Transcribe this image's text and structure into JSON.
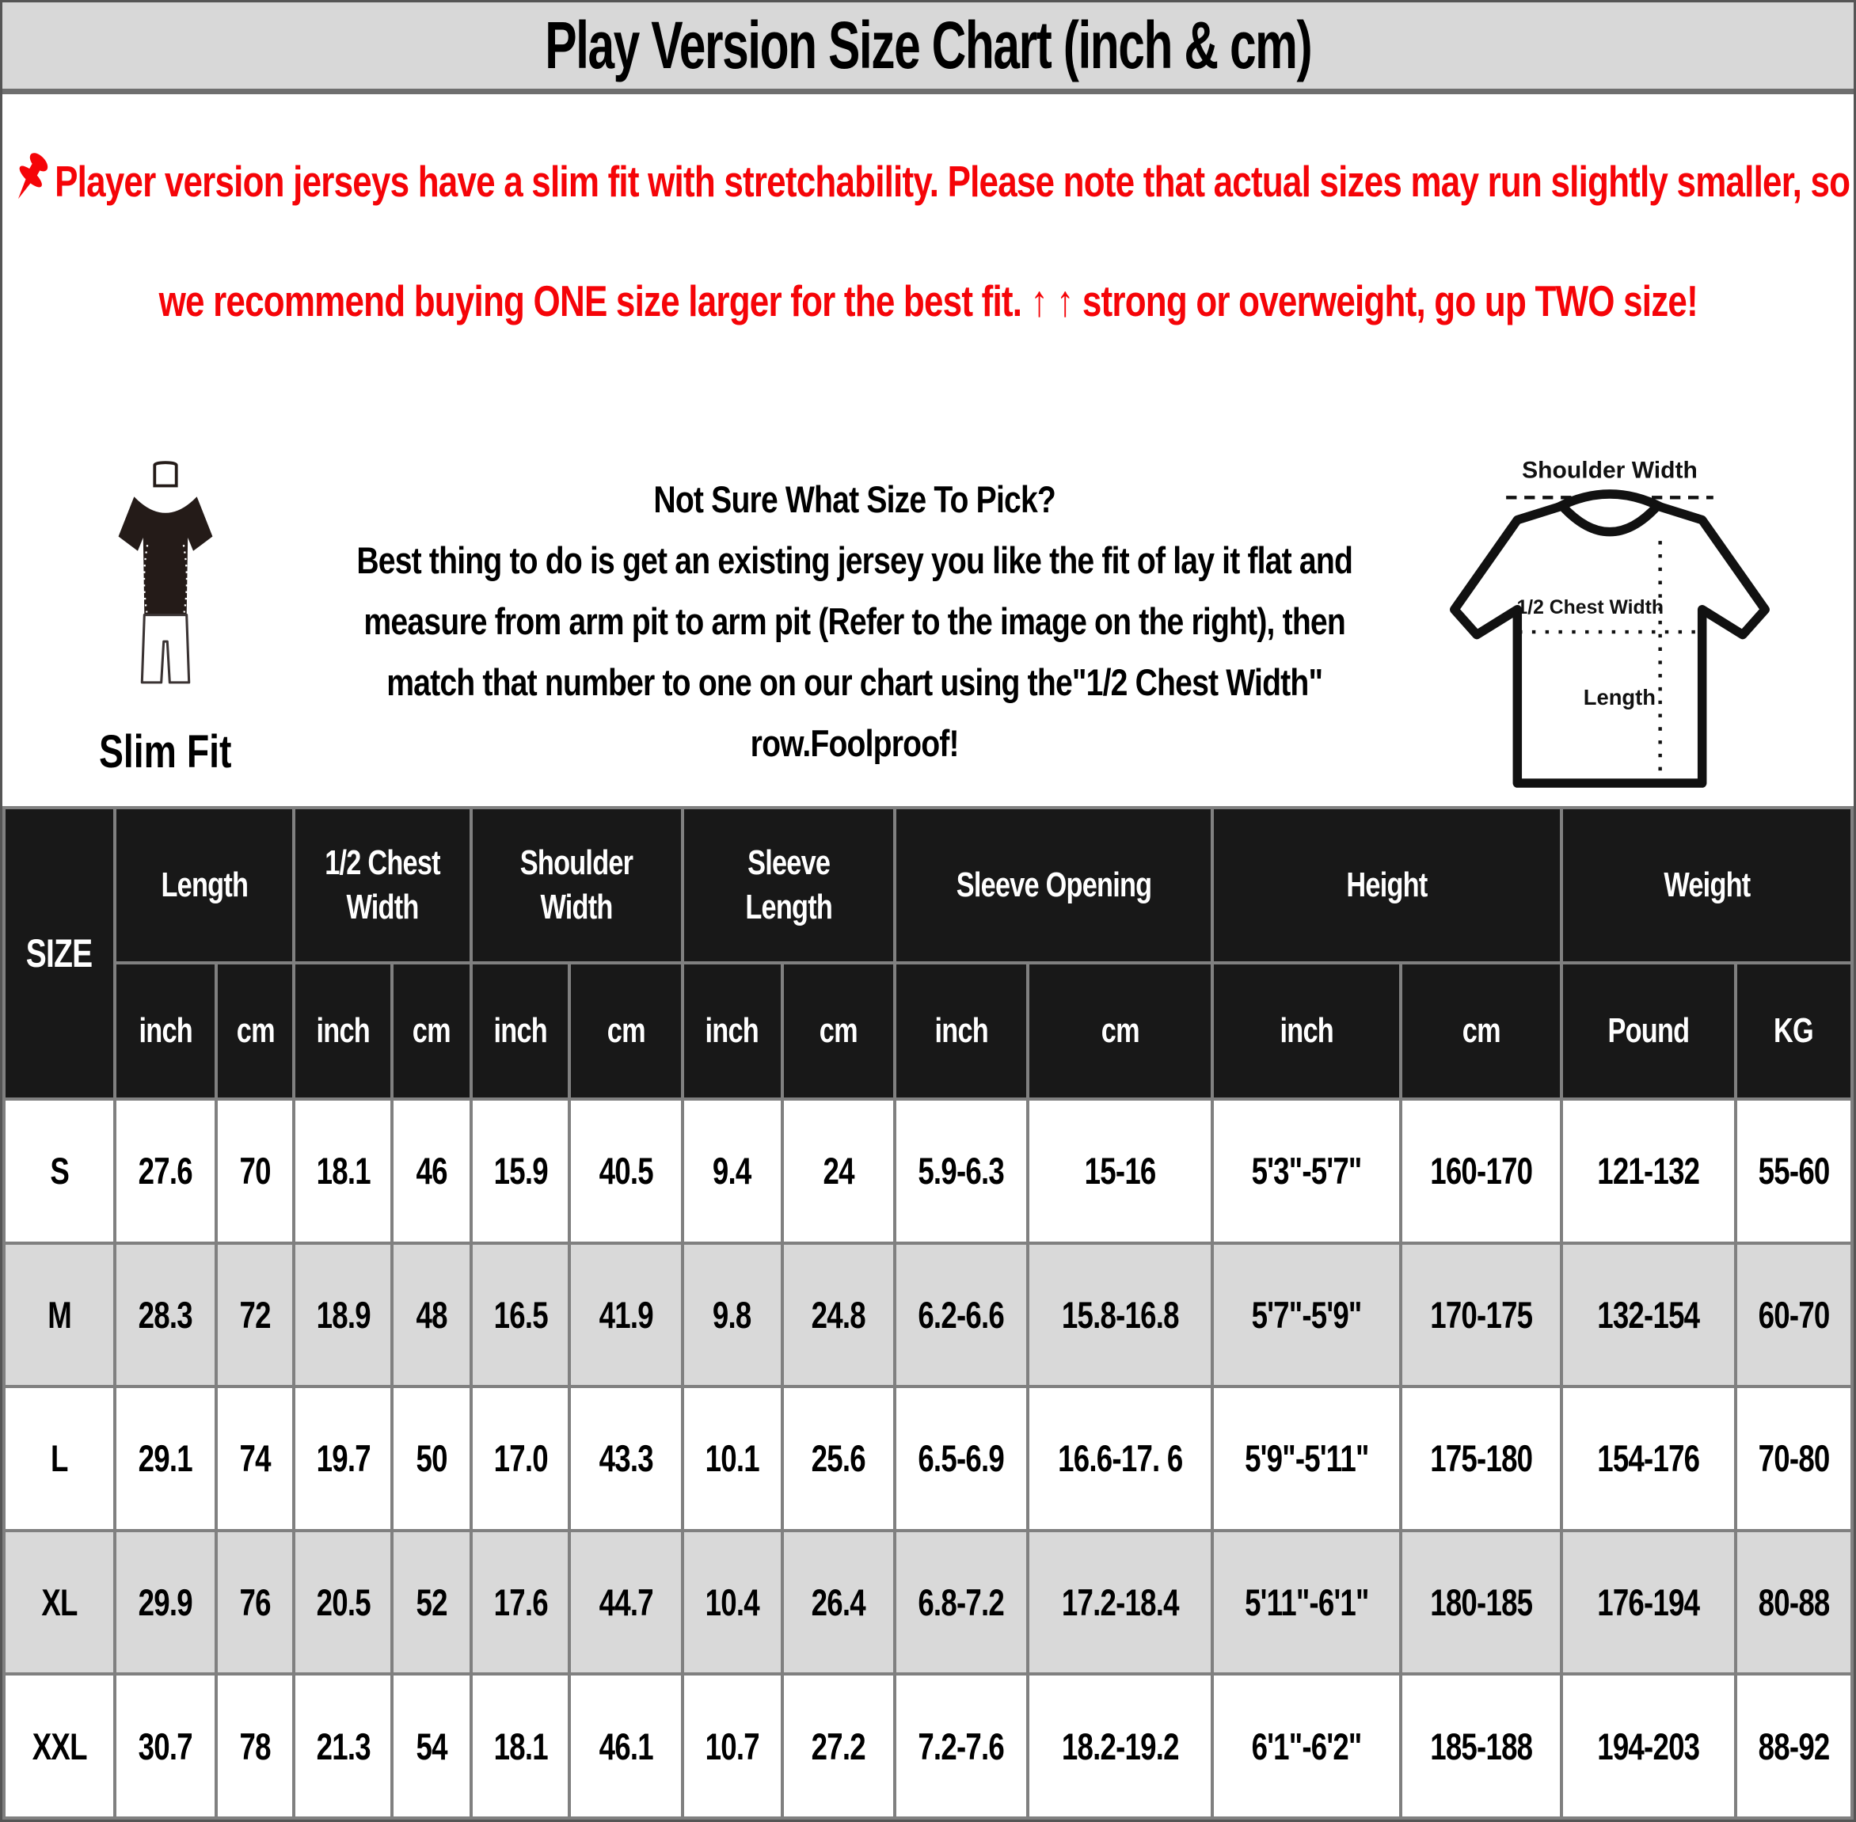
{
  "header": {
    "title": "Play Version Size Chart (inch & cm)"
  },
  "notice": {
    "pin_icon": "pushpin-icon",
    "text": "Player version jerseys have a slim fit with stretchability. Please note that actual sizes may run slightly smaller, so we recommend buying ONE size larger for the best fit. ↑ ↑ strong or overweight, go up TWO size!"
  },
  "guide": {
    "slim_fit_label": "Slim Fit",
    "heading": "Not Sure What Size To Pick?",
    "body": "Best thing to do is get an existing jersey you like the fit of lay it flat and measure from arm pit to arm pit (Refer to the image on the right), then match that number to one on our chart using the\"1/2 Chest Width\" row.Foolproof!"
  },
  "diagram": {
    "shoulder_width_label": "Shoulder Width",
    "half_chest_width_label": "1/2 Chest Width",
    "length_label": "Length"
  },
  "table": {
    "size_col_header": "SIZE",
    "groups": [
      {
        "label": "Length",
        "sub": [
          "inch",
          "cm"
        ]
      },
      {
        "label": "1/2 Chest Width",
        "sub": [
          "inch",
          "cm"
        ]
      },
      {
        "label": "Shoulder Width",
        "sub": [
          "inch",
          "cm"
        ]
      },
      {
        "label": "Sleeve Length",
        "sub": [
          "inch",
          "cm"
        ]
      },
      {
        "label": "Sleeve Opening",
        "sub": [
          "inch",
          "cm"
        ]
      },
      {
        "label": "Height",
        "sub": [
          "inch",
          "cm"
        ]
      },
      {
        "label": "Weight",
        "sub": [
          "Pound",
          "KG"
        ]
      }
    ],
    "rows": [
      {
        "size": "S",
        "values": [
          "27.6",
          "70",
          "18.1",
          "46",
          "15.9",
          "40.5",
          "9.4",
          "24",
          "5.9-6.3",
          "15-16",
          "5'3\"-5'7\"",
          "160-170",
          "121-132",
          "55-60"
        ]
      },
      {
        "size": "M",
        "values": [
          "28.3",
          "72",
          "18.9",
          "48",
          "16.5",
          "41.9",
          "9.8",
          "24.8",
          "6.2-6.6",
          "15.8-16.8",
          "5'7\"-5'9\"",
          "170-175",
          "132-154",
          "60-70"
        ]
      },
      {
        "size": "L",
        "values": [
          "29.1",
          "74",
          "19.7",
          "50",
          "17.0",
          "43.3",
          "10.1",
          "25.6",
          "6.5-6.9",
          "16.6-17. 6",
          "5'9\"-5'11\"",
          "175-180",
          "154-176",
          "70-80"
        ]
      },
      {
        "size": "XL",
        "values": [
          "29.9",
          "76",
          "20.5",
          "52",
          "17.6",
          "44.7",
          "10.4",
          "26.4",
          "6.8-7.2",
          "17.2-18.4",
          "5'11\"-6'1\"",
          "180-185",
          "176-194",
          "80-88"
        ]
      },
      {
        "size": "XXL",
        "values": [
          "30.7",
          "78",
          "21.3",
          "54",
          "18.1",
          "46.1",
          "10.7",
          "27.2",
          "7.2-7.6",
          "18.2-19.2",
          "6'1\"-6'2\"",
          "185-188",
          "194-203",
          "88-92"
        ]
      }
    ]
  },
  "colors": {
    "accent_red": "#f50408",
    "table_header_bg": "#181818",
    "shaded_row": "#d9d9d9",
    "title_band": "#d8d8d8",
    "grid_border": "#808080"
  }
}
